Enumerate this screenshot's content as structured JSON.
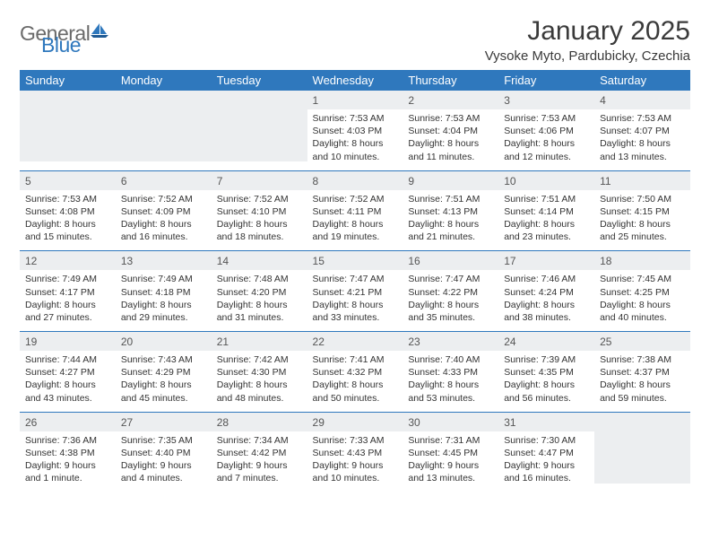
{
  "logo": {
    "general": "General",
    "blue": "Blue"
  },
  "title": "January 2025",
  "location": "Vysoke Myto, Pardubicky, Czechia",
  "colors": {
    "brand": "#2f78bd",
    "header_bg": "#2f78bd",
    "header_text": "#ffffff",
    "daynum_bg": "#eceef0",
    "text": "#333333",
    "logo_gray": "#6a6a6a"
  },
  "daysOfWeek": [
    "Sunday",
    "Monday",
    "Tuesday",
    "Wednesday",
    "Thursday",
    "Friday",
    "Saturday"
  ],
  "weeks": [
    [
      null,
      null,
      null,
      {
        "n": "1",
        "sr": "Sunrise: 7:53 AM",
        "ss": "Sunset: 4:03 PM",
        "d1": "Daylight: 8 hours",
        "d2": "and 10 minutes."
      },
      {
        "n": "2",
        "sr": "Sunrise: 7:53 AM",
        "ss": "Sunset: 4:04 PM",
        "d1": "Daylight: 8 hours",
        "d2": "and 11 minutes."
      },
      {
        "n": "3",
        "sr": "Sunrise: 7:53 AM",
        "ss": "Sunset: 4:06 PM",
        "d1": "Daylight: 8 hours",
        "d2": "and 12 minutes."
      },
      {
        "n": "4",
        "sr": "Sunrise: 7:53 AM",
        "ss": "Sunset: 4:07 PM",
        "d1": "Daylight: 8 hours",
        "d2": "and 13 minutes."
      }
    ],
    [
      {
        "n": "5",
        "sr": "Sunrise: 7:53 AM",
        "ss": "Sunset: 4:08 PM",
        "d1": "Daylight: 8 hours",
        "d2": "and 15 minutes."
      },
      {
        "n": "6",
        "sr": "Sunrise: 7:52 AM",
        "ss": "Sunset: 4:09 PM",
        "d1": "Daylight: 8 hours",
        "d2": "and 16 minutes."
      },
      {
        "n": "7",
        "sr": "Sunrise: 7:52 AM",
        "ss": "Sunset: 4:10 PM",
        "d1": "Daylight: 8 hours",
        "d2": "and 18 minutes."
      },
      {
        "n": "8",
        "sr": "Sunrise: 7:52 AM",
        "ss": "Sunset: 4:11 PM",
        "d1": "Daylight: 8 hours",
        "d2": "and 19 minutes."
      },
      {
        "n": "9",
        "sr": "Sunrise: 7:51 AM",
        "ss": "Sunset: 4:13 PM",
        "d1": "Daylight: 8 hours",
        "d2": "and 21 minutes."
      },
      {
        "n": "10",
        "sr": "Sunrise: 7:51 AM",
        "ss": "Sunset: 4:14 PM",
        "d1": "Daylight: 8 hours",
        "d2": "and 23 minutes."
      },
      {
        "n": "11",
        "sr": "Sunrise: 7:50 AM",
        "ss": "Sunset: 4:15 PM",
        "d1": "Daylight: 8 hours",
        "d2": "and 25 minutes."
      }
    ],
    [
      {
        "n": "12",
        "sr": "Sunrise: 7:49 AM",
        "ss": "Sunset: 4:17 PM",
        "d1": "Daylight: 8 hours",
        "d2": "and 27 minutes."
      },
      {
        "n": "13",
        "sr": "Sunrise: 7:49 AM",
        "ss": "Sunset: 4:18 PM",
        "d1": "Daylight: 8 hours",
        "d2": "and 29 minutes."
      },
      {
        "n": "14",
        "sr": "Sunrise: 7:48 AM",
        "ss": "Sunset: 4:20 PM",
        "d1": "Daylight: 8 hours",
        "d2": "and 31 minutes."
      },
      {
        "n": "15",
        "sr": "Sunrise: 7:47 AM",
        "ss": "Sunset: 4:21 PM",
        "d1": "Daylight: 8 hours",
        "d2": "and 33 minutes."
      },
      {
        "n": "16",
        "sr": "Sunrise: 7:47 AM",
        "ss": "Sunset: 4:22 PM",
        "d1": "Daylight: 8 hours",
        "d2": "and 35 minutes."
      },
      {
        "n": "17",
        "sr": "Sunrise: 7:46 AM",
        "ss": "Sunset: 4:24 PM",
        "d1": "Daylight: 8 hours",
        "d2": "and 38 minutes."
      },
      {
        "n": "18",
        "sr": "Sunrise: 7:45 AM",
        "ss": "Sunset: 4:25 PM",
        "d1": "Daylight: 8 hours",
        "d2": "and 40 minutes."
      }
    ],
    [
      {
        "n": "19",
        "sr": "Sunrise: 7:44 AM",
        "ss": "Sunset: 4:27 PM",
        "d1": "Daylight: 8 hours",
        "d2": "and 43 minutes."
      },
      {
        "n": "20",
        "sr": "Sunrise: 7:43 AM",
        "ss": "Sunset: 4:29 PM",
        "d1": "Daylight: 8 hours",
        "d2": "and 45 minutes."
      },
      {
        "n": "21",
        "sr": "Sunrise: 7:42 AM",
        "ss": "Sunset: 4:30 PM",
        "d1": "Daylight: 8 hours",
        "d2": "and 48 minutes."
      },
      {
        "n": "22",
        "sr": "Sunrise: 7:41 AM",
        "ss": "Sunset: 4:32 PM",
        "d1": "Daylight: 8 hours",
        "d2": "and 50 minutes."
      },
      {
        "n": "23",
        "sr": "Sunrise: 7:40 AM",
        "ss": "Sunset: 4:33 PM",
        "d1": "Daylight: 8 hours",
        "d2": "and 53 minutes."
      },
      {
        "n": "24",
        "sr": "Sunrise: 7:39 AM",
        "ss": "Sunset: 4:35 PM",
        "d1": "Daylight: 8 hours",
        "d2": "and 56 minutes."
      },
      {
        "n": "25",
        "sr": "Sunrise: 7:38 AM",
        "ss": "Sunset: 4:37 PM",
        "d1": "Daylight: 8 hours",
        "d2": "and 59 minutes."
      }
    ],
    [
      {
        "n": "26",
        "sr": "Sunrise: 7:36 AM",
        "ss": "Sunset: 4:38 PM",
        "d1": "Daylight: 9 hours",
        "d2": "and 1 minute."
      },
      {
        "n": "27",
        "sr": "Sunrise: 7:35 AM",
        "ss": "Sunset: 4:40 PM",
        "d1": "Daylight: 9 hours",
        "d2": "and 4 minutes."
      },
      {
        "n": "28",
        "sr": "Sunrise: 7:34 AM",
        "ss": "Sunset: 4:42 PM",
        "d1": "Daylight: 9 hours",
        "d2": "and 7 minutes."
      },
      {
        "n": "29",
        "sr": "Sunrise: 7:33 AM",
        "ss": "Sunset: 4:43 PM",
        "d1": "Daylight: 9 hours",
        "d2": "and 10 minutes."
      },
      {
        "n": "30",
        "sr": "Sunrise: 7:31 AM",
        "ss": "Sunset: 4:45 PM",
        "d1": "Daylight: 9 hours",
        "d2": "and 13 minutes."
      },
      {
        "n": "31",
        "sr": "Sunrise: 7:30 AM",
        "ss": "Sunset: 4:47 PM",
        "d1": "Daylight: 9 hours",
        "d2": "and 16 minutes."
      },
      null
    ]
  ]
}
